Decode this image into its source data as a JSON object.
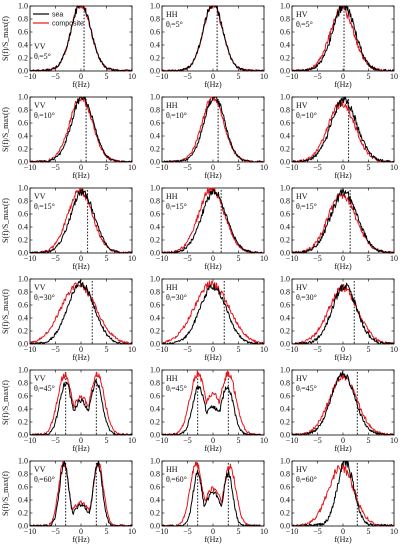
{
  "chart_data": {
    "type": "line",
    "layout_grid": {
      "rows": 6,
      "cols": 3
    },
    "xlabel": "f(Hz)",
    "ylabel": "S(f)/S_max(f)",
    "xlim": [
      -10,
      10
    ],
    "ylim": [
      0,
      1.0
    ],
    "x_ticks": [
      "−10",
      "−5",
      "0",
      "5",
      "10"
    ],
    "y_ticks": [
      "0.0",
      "0.2",
      "0.4",
      "0.6",
      "0.8",
      "1.0"
    ],
    "legend": {
      "placement": "top-left of first panel",
      "entries": [
        {
          "name": "sea",
          "color": "#000000"
        },
        {
          "name": "composite",
          "color": "#e8141c"
        }
      ]
    },
    "series_colors": {
      "sea": "#000000",
      "composite": "#e8141c"
    },
    "polarizations": [
      "VV",
      "HH",
      "HV"
    ],
    "angles": [
      "θᵢ=5°",
      "θᵢ=10°",
      "θᵢ=15°",
      "θᵢ=30°",
      "θᵢ=45°",
      "θᵢ=60°"
    ],
    "panels": [
      {
        "pol": "VV",
        "angle": "θᵢ=5°",
        "dashed_x": 0.6,
        "sea": {
          "peaks": [
            [
              0,
              1.0,
              1.9
            ]
          ],
          "base": 0.05,
          "noise": 0.08
        },
        "composite": {
          "peaks": [
            [
              0,
              0.98,
              1.9
            ]
          ],
          "base": 0.05,
          "noise": 0.08
        }
      },
      {
        "pol": "HH",
        "angle": "θᵢ=5°",
        "dashed_x": 0.8,
        "sea": {
          "peaks": [
            [
              0,
              1.0,
              1.9
            ]
          ],
          "base": 0.04,
          "noise": 0.08
        },
        "composite": {
          "peaks": [
            [
              0,
              0.97,
              1.9
            ]
          ],
          "base": 0.04,
          "noise": 0.08
        }
      },
      {
        "pol": "HV",
        "angle": "θᵢ=5°",
        "dashed_x": 0.2,
        "sea": {
          "peaks": [
            [
              0.2,
              0.95,
              2.2
            ]
          ],
          "base": 0.05,
          "noise": 0.1
        },
        "composite": {
          "peaks": [
            [
              -0.2,
              0.9,
              2.3
            ]
          ],
          "base": 0.05,
          "noise": 0.1
        }
      },
      {
        "pol": "VV",
        "angle": "θᵢ=10°",
        "dashed_x": 1.0,
        "sea": {
          "peaks": [
            [
              0.3,
              0.97,
              2.1
            ]
          ],
          "base": 0.04,
          "noise": 0.08
        },
        "composite": {
          "peaks": [
            [
              0,
              0.95,
              2.2
            ]
          ],
          "base": 0.04,
          "noise": 0.08
        }
      },
      {
        "pol": "HH",
        "angle": "θᵢ=10°",
        "dashed_x": 1.0,
        "sea": {
          "peaks": [
            [
              0.3,
              0.97,
              2.0
            ]
          ],
          "base": 0.04,
          "noise": 0.08
        },
        "composite": {
          "peaks": [
            [
              0,
              0.95,
              2.1
            ]
          ],
          "base": 0.04,
          "noise": 0.08
        }
      },
      {
        "pol": "HV",
        "angle": "θᵢ=10°",
        "dashed_x": 1.1,
        "sea": {
          "peaks": [
            [
              0.2,
              0.9,
              2.5
            ]
          ],
          "base": 0.05,
          "noise": 0.1
        },
        "composite": {
          "peaks": [
            [
              -0.3,
              0.85,
              2.6
            ]
          ],
          "base": 0.05,
          "noise": 0.1
        }
      },
      {
        "pol": "VV",
        "angle": "θᵢ=15°",
        "dashed_x": 1.3,
        "sea": {
          "peaks": [
            [
              0.3,
              0.9,
              2.3
            ]
          ],
          "base": 0.04,
          "noise": 0.08
        },
        "composite": {
          "peaks": [
            [
              -0.2,
              0.92,
              2.4
            ]
          ],
          "base": 0.04,
          "noise": 0.08
        }
      },
      {
        "pol": "HH",
        "angle": "θᵢ=15°",
        "dashed_x": 1.6,
        "sea": {
          "peaks": [
            [
              0.2,
              0.9,
              2.4
            ]
          ],
          "base": 0.04,
          "noise": 0.08
        },
        "composite": {
          "peaks": [
            [
              -0.3,
              0.95,
              2.5
            ]
          ],
          "base": 0.04,
          "noise": 0.08
        }
      },
      {
        "pol": "HV",
        "angle": "θᵢ=15°",
        "dashed_x": 1.4,
        "sea": {
          "peaks": [
            [
              0.2,
              0.88,
              2.6
            ]
          ],
          "base": 0.05,
          "noise": 0.1
        },
        "composite": {
          "peaks": [
            [
              -0.2,
              0.85,
              2.7
            ]
          ],
          "base": 0.05,
          "noise": 0.1
        }
      },
      {
        "pol": "VV",
        "angle": "θᵢ=30°",
        "dashed_x": 2.2,
        "sea": {
          "peaks": [
            [
              0,
              0.9,
              2.6
            ]
          ],
          "base": 0.03,
          "noise": 0.08
        },
        "composite": {
          "peaks": [
            [
              -0.5,
              0.88,
              3.4
            ]
          ],
          "base": 0.03,
          "noise": 0.08
        }
      },
      {
        "pol": "HH",
        "angle": "θᵢ=30°",
        "dashed_x": 2.2,
        "sea": {
          "peaks": [
            [
              0,
              0.85,
              2.6
            ]
          ],
          "base": 0.03,
          "noise": 0.08
        },
        "composite": {
          "peaks": [
            [
              -0.3,
              0.9,
              3.4
            ]
          ],
          "base": 0.03,
          "noise": 0.08
        }
      },
      {
        "pol": "HV",
        "angle": "θᵢ=30°",
        "dashed_x": 2.2,
        "sea": {
          "peaks": [
            [
              0.3,
              0.85,
              2.4
            ]
          ],
          "base": 0.04,
          "noise": 0.1
        },
        "composite": {
          "peaks": [
            [
              0,
              0.82,
              2.9
            ]
          ],
          "base": 0.04,
          "noise": 0.1
        }
      },
      {
        "pol": "VV",
        "angle": "θᵢ=45°",
        "dashed_x": [
          -3.0,
          3.0
        ],
        "sea": {
          "peaks": [
            [
              -3.0,
              0.78,
              1.2
            ],
            [
              3.0,
              0.78,
              1.2
            ],
            [
              0,
              0.5,
              1.5
            ]
          ],
          "base": 0.03,
          "noise": 0.08
        },
        "composite": {
          "peaks": [
            [
              -3.2,
              0.9,
              1.4
            ],
            [
              3.2,
              0.9,
              1.4
            ],
            [
              0,
              0.55,
              1.8
            ]
          ],
          "base": 0.03,
          "noise": 0.08
        }
      },
      {
        "pol": "HH",
        "angle": "θᵢ=45°",
        "dashed_x": [
          -3.0,
          3.0
        ],
        "sea": {
          "peaks": [
            [
              -2.8,
              0.72,
              1.2
            ],
            [
              2.8,
              0.72,
              1.2
            ],
            [
              0,
              0.4,
              1.6
            ]
          ],
          "base": 0.03,
          "noise": 0.08
        },
        "composite": {
          "peaks": [
            [
              -3.0,
              0.92,
              1.5
            ],
            [
              3.0,
              0.92,
              1.5
            ],
            [
              0,
              0.6,
              1.8
            ]
          ],
          "base": 0.03,
          "noise": 0.08
        }
      },
      {
        "pol": "HV",
        "angle": "θᵢ=45°",
        "dashed_x": 2.8,
        "sea": {
          "peaks": [
            [
              0,
              0.9,
              2.3
            ]
          ],
          "base": 0.04,
          "noise": 0.08
        },
        "composite": {
          "peaks": [
            [
              0,
              0.85,
              2.7
            ]
          ],
          "base": 0.04,
          "noise": 0.08
        }
      },
      {
        "pol": "VV",
        "angle": "θᵢ=60°",
        "dashed_x": [
          -3.0,
          3.0
        ],
        "sea": {
          "peaks": [
            [
              -3.3,
              0.95,
              0.9
            ],
            [
              3.3,
              0.95,
              0.9
            ],
            [
              0,
              0.3,
              1.5
            ]
          ],
          "base": 0.02,
          "noise": 0.08
        },
        "composite": {
          "peaks": [
            [
              -3.4,
              0.95,
              1.0
            ],
            [
              3.4,
              0.95,
              1.0
            ],
            [
              0,
              0.35,
              1.7
            ]
          ],
          "base": 0.02,
          "noise": 0.08
        }
      },
      {
        "pol": "HH",
        "angle": "θᵢ=60°",
        "dashed_x": [
          -3.0,
          3.0
        ],
        "sea": {
          "peaks": [
            [
              -3.0,
              0.8,
              0.9
            ],
            [
              3.0,
              0.8,
              0.9
            ],
            [
              0,
              0.5,
              1.5
            ]
          ],
          "base": 0.02,
          "noise": 0.08
        },
        "composite": {
          "peaks": [
            [
              -3.3,
              0.95,
              1.2
            ],
            [
              3.3,
              0.9,
              1.2
            ],
            [
              0,
              0.55,
              1.8
            ]
          ],
          "base": 0.02,
          "noise": 0.08
        }
      },
      {
        "pol": "HV",
        "angle": "θᵢ=60°",
        "dashed_x": 2.8,
        "sea": {
          "peaks": [
            [
              0.5,
              0.95,
              1.6
            ]
          ],
          "base": 0.03,
          "noise": 0.1
        },
        "composite": {
          "peaks": [
            [
              -0.4,
              0.88,
              2.5
            ]
          ],
          "base": 0.03,
          "noise": 0.1
        }
      }
    ]
  }
}
